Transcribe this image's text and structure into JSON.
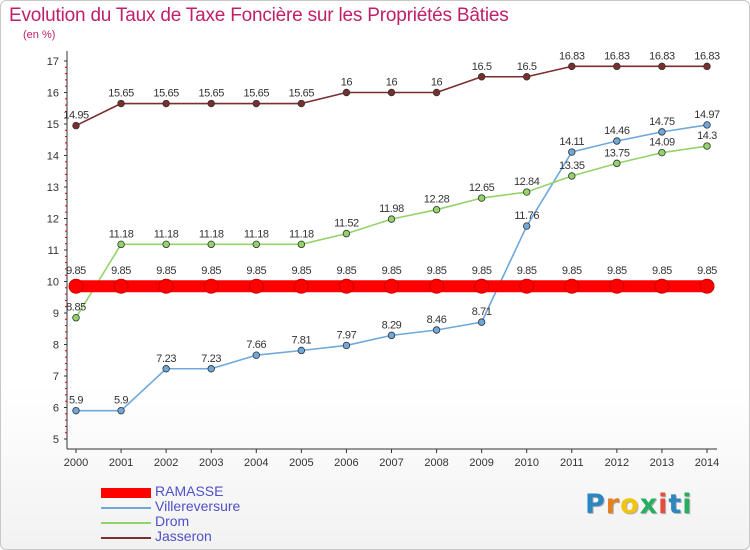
{
  "chart_data": {
    "type": "line",
    "title": "Evolution du Taux de Taxe Foncière sur les Propriétés Bâties",
    "ylabel": "(en %)",
    "xlabel": "",
    "categories": [
      "2000",
      "2001",
      "2002",
      "2003",
      "2004",
      "2005",
      "2006",
      "2007",
      "2008",
      "2009",
      "2010",
      "2011",
      "2012",
      "2013",
      "2014"
    ],
    "ylim": [
      5,
      17
    ],
    "yticks": [
      "5",
      "6",
      "7",
      "8",
      "9",
      "10",
      "11",
      "12",
      "13",
      "14",
      "15",
      "16",
      "17"
    ],
    "grid": false,
    "legend_position": "bottom-left",
    "series": [
      {
        "name": "RAMASSE",
        "color": "#ff0000",
        "values": [
          9.85,
          9.85,
          9.85,
          9.85,
          9.85,
          9.85,
          9.85,
          9.85,
          9.85,
          9.85,
          9.85,
          9.85,
          9.85,
          9.85,
          9.85
        ],
        "labels": [
          "9.85",
          "9.85",
          "9.85",
          "9.85",
          "9.85",
          "9.85",
          "9.85",
          "9.85",
          "9.85",
          "9.85",
          "9.85",
          "9.85",
          "9.85",
          "9.85",
          "9.85"
        ]
      },
      {
        "name": "Villereversure",
        "color": "#6fa8dc",
        "values": [
          5.9,
          5.9,
          7.23,
          7.23,
          7.66,
          7.81,
          7.97,
          8.29,
          8.46,
          8.71,
          11.76,
          14.11,
          14.46,
          14.75,
          14.97
        ],
        "labels": [
          "5.9",
          "5.9",
          "7.23",
          "7.23",
          "7.66",
          "7.81",
          "7.97",
          "8.29",
          "8.46",
          "8.71",
          "11.76",
          "14.11",
          "14.46",
          "14.75",
          "14.97"
        ]
      },
      {
        "name": "Drom",
        "color": "#93d46a",
        "values": [
          8.85,
          11.18,
          11.18,
          11.18,
          11.18,
          11.18,
          11.52,
          11.98,
          12.28,
          12.65,
          12.84,
          13.35,
          13.75,
          14.09,
          14.3
        ],
        "labels": [
          "8.85",
          "11.18",
          "11.18",
          "11.18",
          "11.18",
          "11.18",
          "11.52",
          "11.98",
          "12.28",
          "12.65",
          "12.84",
          "13.35",
          "13.75",
          "14.09",
          "14.3"
        ]
      },
      {
        "name": "Jasseron",
        "color": "#7a2e2e",
        "values": [
          14.95,
          15.65,
          15.65,
          15.65,
          15.65,
          15.65,
          16,
          16,
          16,
          16.5,
          16.5,
          16.83,
          16.83,
          16.83,
          16.83
        ],
        "labels": [
          "14.95",
          "15.65",
          "15.65",
          "15.65",
          "15.65",
          "15.65",
          "16",
          "16",
          "16",
          "16.5",
          "16.5",
          "16.83",
          "16.83",
          "16.83",
          "16.83"
        ]
      }
    ]
  },
  "logo": {
    "letters": [
      "P",
      "r",
      "o",
      "x",
      "i",
      "t",
      "i"
    ],
    "colors": [
      "#2e86c1",
      "#e67e22",
      "#f1c40f",
      "#27ae60",
      "#e74c3c",
      "#2e86c1",
      "#27ae60"
    ]
  }
}
